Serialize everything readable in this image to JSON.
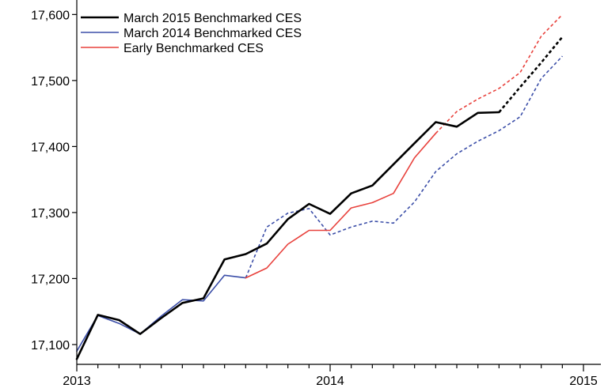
{
  "chart_data": {
    "type": "line",
    "title": "",
    "xlabel": "",
    "ylabel": "",
    "x_tick_labels": [
      "2013",
      "2014",
      "2015"
    ],
    "x_ticks": [
      2013,
      2014,
      2015
    ],
    "xlim": [
      2013,
      2015
    ],
    "y_tick_labels": [
      "17,100",
      "17,200",
      "17,300",
      "17,400",
      "17,500",
      "17,600"
    ],
    "y_ticks": [
      17100,
      17200,
      17300,
      17400,
      17500,
      17600
    ],
    "ylim": [
      17070,
      17610
    ],
    "grid": false,
    "legend_position": "top-left",
    "series": [
      {
        "name": "March 2015 Benchmarked CES",
        "color": "#000000",
        "solid": [
          [
            2013.0,
            17078
          ],
          [
            2013.083,
            17145
          ],
          [
            2013.167,
            17137
          ],
          [
            2013.25,
            17116
          ],
          [
            2013.333,
            17140
          ],
          [
            2013.417,
            17163
          ],
          [
            2013.5,
            17170
          ],
          [
            2013.583,
            17229
          ],
          [
            2013.667,
            17237
          ],
          [
            2013.75,
            17253
          ],
          [
            2013.833,
            17290
          ],
          [
            2013.917,
            17313
          ],
          [
            2014.0,
            17298
          ],
          [
            2014.083,
            17329
          ],
          [
            2014.167,
            17341
          ],
          [
            2014.25,
            17373
          ],
          [
            2014.333,
            17405
          ],
          [
            2014.417,
            17437
          ],
          [
            2014.5,
            17430
          ],
          [
            2014.583,
            17451
          ],
          [
            2014.667,
            17452
          ]
        ],
        "dashed": [
          [
            2014.667,
            17452
          ],
          [
            2014.75,
            17490
          ],
          [
            2014.833,
            17527
          ],
          [
            2014.917,
            17566
          ]
        ]
      },
      {
        "name": "March 2014 Benchmarked CES",
        "color": "#3b4ea8",
        "solid": [
          [
            2013.0,
            17090
          ],
          [
            2013.083,
            17144
          ],
          [
            2013.167,
            17132
          ],
          [
            2013.25,
            17116
          ],
          [
            2013.333,
            17143
          ],
          [
            2013.417,
            17168
          ],
          [
            2013.5,
            17166
          ],
          [
            2013.583,
            17205
          ],
          [
            2013.667,
            17201
          ]
        ],
        "dashed": [
          [
            2013.667,
            17201
          ],
          [
            2013.75,
            17278
          ],
          [
            2013.833,
            17299
          ],
          [
            2013.917,
            17306
          ],
          [
            2014.0,
            17266
          ],
          [
            2014.083,
            17278
          ],
          [
            2014.167,
            17287
          ],
          [
            2014.25,
            17284
          ],
          [
            2014.333,
            17316
          ],
          [
            2014.417,
            17362
          ],
          [
            2014.5,
            17389
          ],
          [
            2014.583,
            17408
          ],
          [
            2014.667,
            17424
          ],
          [
            2014.75,
            17445
          ],
          [
            2014.833,
            17503
          ],
          [
            2014.917,
            17537
          ]
        ]
      },
      {
        "name": "Early Benchmarked CES",
        "color": "#e8413c",
        "solid": [
          [
            2013.667,
            17201
          ],
          [
            2013.75,
            17216
          ],
          [
            2013.833,
            17252
          ],
          [
            2013.917,
            17273
          ],
          [
            2014.0,
            17273
          ],
          [
            2014.083,
            17307
          ],
          [
            2014.167,
            17315
          ],
          [
            2014.25,
            17329
          ],
          [
            2014.333,
            17383
          ],
          [
            2014.417,
            17420
          ]
        ],
        "dashed": [
          [
            2014.417,
            17420
          ],
          [
            2014.5,
            17453
          ],
          [
            2014.583,
            17472
          ],
          [
            2014.667,
            17488
          ],
          [
            2014.75,
            17512
          ],
          [
            2014.833,
            17567
          ],
          [
            2014.917,
            17600
          ]
        ]
      }
    ]
  }
}
